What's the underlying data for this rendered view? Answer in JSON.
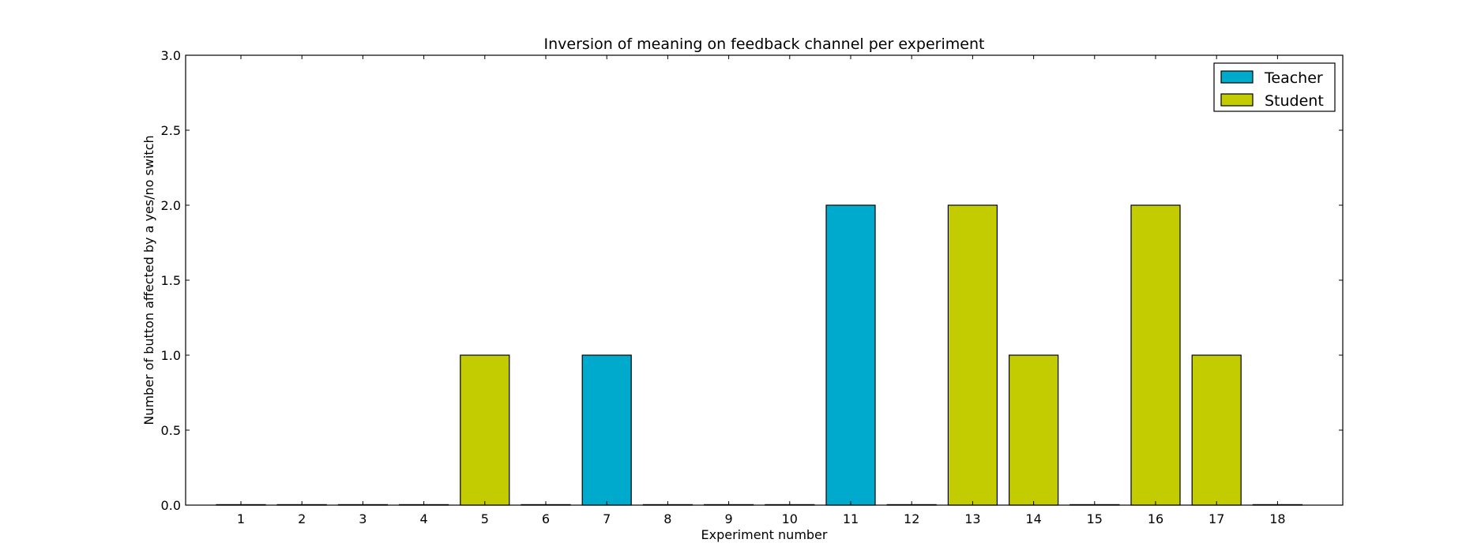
{
  "chart_data": {
    "type": "bar",
    "title": "Inversion of meaning on feedback channel per experiment",
    "xlabel": "Experiment number",
    "ylabel": "Number of button affected by a yes/no switch",
    "ylim": [
      0,
      3.0
    ],
    "yticks": [
      "0.0",
      "0.5",
      "1.0",
      "1.5",
      "2.0",
      "2.5",
      "3.0"
    ],
    "categories": [
      "1",
      "2",
      "3",
      "4",
      "5",
      "6",
      "7",
      "8",
      "9",
      "10",
      "11",
      "12",
      "13",
      "14",
      "15",
      "16",
      "17",
      "18"
    ],
    "values": [
      0,
      0,
      0,
      0,
      1,
      0,
      1,
      0,
      0,
      0,
      2,
      0,
      2,
      1,
      0,
      2,
      1,
      0
    ],
    "bar_series": [
      "Teacher",
      "Teacher",
      "Teacher",
      "Teacher",
      "Student",
      "Teacher",
      "Teacher",
      "Teacher",
      "Teacher",
      "Teacher",
      "Teacher",
      "Teacher",
      "Student",
      "Student",
      "Teacher",
      "Student",
      "Student",
      "Teacher"
    ],
    "series": [
      {
        "name": "Teacher",
        "color": "#00aacc"
      },
      {
        "name": "Student",
        "color": "#c2cc00"
      }
    ],
    "legend": "top-right",
    "grid": false
  }
}
